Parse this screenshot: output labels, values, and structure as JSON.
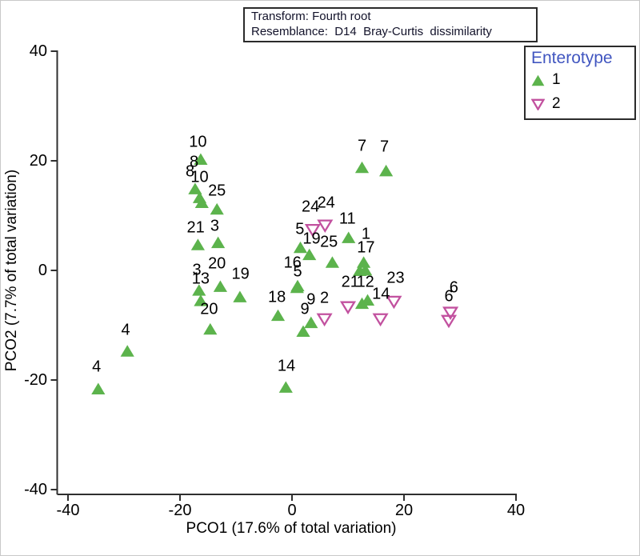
{
  "annotation_box": {
    "line1": "Transform: Fourth root",
    "line2": "Resemblance:  D14  Bray-Curtis  dissimilarity"
  },
  "legend": {
    "title": "Enterotype",
    "items": [
      {
        "label": "1",
        "marker": "filled-up-triangle",
        "color": "#5cb34c"
      },
      {
        "label": "2",
        "marker": "open-down-triangle",
        "color": "#c2519f"
      }
    ]
  },
  "colors": {
    "enterotype1_green": "#5cb34c",
    "enterotype2_pink": "#c2519f",
    "legend_title_blue": "#4156c0",
    "axis": "#2f2f2f",
    "text": "#000000"
  },
  "chart_data": {
    "type": "scatter",
    "title": "",
    "xlabel": "PCO1 (17.6% of total variation)",
    "ylabel": "PCO2 (7.7% of total variation)",
    "xlim": [
      -40,
      40
    ],
    "ylim": [
      -40,
      40
    ],
    "xticks": [
      -40,
      -20,
      0,
      20,
      40
    ],
    "yticks": [
      -40,
      -20,
      0,
      20,
      40
    ],
    "grid": false,
    "legend_position": "top-right",
    "series": [
      {
        "name": "1",
        "marker": "filled-up-triangle",
        "color": "#5cb34c",
        "points": [
          {
            "label": "10",
            "x": -16.3,
            "y": 20.3,
            "lx": -16.8,
            "ly": 23.4
          },
          {
            "label": "8",
            "x": -17.3,
            "y": 14.9,
            "lx": -17.5,
            "ly": 19.7
          },
          {
            "label": "8",
            "x": -16.5,
            "y": 13.3,
            "lx": -18.2,
            "ly": 18.0
          },
          {
            "label": "10",
            "x": -16.1,
            "y": 12.4,
            "lx": -16.5,
            "ly": 16.9
          },
          {
            "label": "25",
            "x": -13.4,
            "y": 11.2,
            "lx": -13.4,
            "ly": 14.5
          },
          {
            "label": "21",
            "x": -16.8,
            "y": 4.7,
            "lx": -17.2,
            "ly": 7.7
          },
          {
            "label": "3",
            "x": -13.2,
            "y": 5.1,
            "lx": -13.8,
            "ly": 8.0
          },
          {
            "label": "20",
            "x": -12.8,
            "y": -2.9,
            "lx": -13.4,
            "ly": 1.2
          },
          {
            "label": "3",
            "x": -16.6,
            "y": -3.6,
            "lx": -17.0,
            "ly": 0.0
          },
          {
            "label": "13",
            "x": -16.3,
            "y": -5.5,
            "lx": -16.3,
            "ly": -1.6
          },
          {
            "label": "19",
            "x": -9.3,
            "y": -4.8,
            "lx": -9.2,
            "ly": -0.7
          },
          {
            "label": "20",
            "x": -14.6,
            "y": -10.7,
            "lx": -14.8,
            "ly": -7.2
          },
          {
            "label": "4",
            "x": -29.4,
            "y": -14.7,
            "lx": -29.7,
            "ly": -10.9
          },
          {
            "label": "4",
            "x": -34.6,
            "y": -21.6,
            "lx": -34.9,
            "ly": -17.7
          },
          {
            "label": "14",
            "x": -1.1,
            "y": -21.3,
            "lx": -1.0,
            "ly": -17.5
          },
          {
            "label": "7",
            "x": 12.5,
            "y": 18.8,
            "lx": 12.5,
            "ly": 22.6
          },
          {
            "label": "7",
            "x": 16.8,
            "y": 18.2,
            "lx": 16.5,
            "ly": 22.5
          },
          {
            "label": "11",
            "x": 10.1,
            "y": 6.0,
            "lx": 9.9,
            "ly": 9.3
          },
          {
            "label": "5",
            "x": 1.5,
            "y": 4.2,
            "lx": 1.4,
            "ly": 7.4
          },
          {
            "label": "19",
            "x": 3.1,
            "y": 2.9,
            "lx": 3.5,
            "ly": 5.7
          },
          {
            "label": "25",
            "x": 7.2,
            "y": 1.5,
            "lx": 6.6,
            "ly": 5.1
          },
          {
            "label": "1",
            "x": 12.8,
            "y": 1.5,
            "lx": 13.2,
            "ly": 6.6
          },
          {
            "label": "17",
            "x": 12.1,
            "y": 0.0,
            "lx": 13.2,
            "ly": 4.1
          },
          {
            "label": "",
            "x": 13.1,
            "y": 0.1,
            "lx": 13.1,
            "ly": 0.1
          },
          {
            "label": "16",
            "x": 1.0,
            "y": -2.8,
            "lx": 0.1,
            "ly": 1.3
          },
          {
            "label": "5",
            "x": 0.9,
            "y": -3.1,
            "lx": 1.0,
            "ly": -0.3
          },
          {
            "label": "18",
            "x": -2.5,
            "y": -8.2,
            "lx": -2.7,
            "ly": -5.0
          },
          {
            "label": "9",
            "x": 3.4,
            "y": -9.5,
            "lx": 3.4,
            "ly": -5.4
          },
          {
            "label": "9",
            "x": 2.0,
            "y": -11.1,
            "lx": 2.3,
            "ly": -7.2
          },
          {
            "label": "21",
            "x": 12.5,
            "y": -6.0,
            "lx": 10.4,
            "ly": -2.2
          },
          {
            "label": "12",
            "x": 13.5,
            "y": -5.4,
            "lx": 13.1,
            "ly": -2.2
          }
        ]
      },
      {
        "name": "2",
        "marker": "open-down-triangle",
        "color": "#c2519f",
        "points": [
          {
            "label": "24",
            "x": 5.9,
            "y": 8.2,
            "lx": 6.1,
            "ly": 12.3
          },
          {
            "label": "24",
            "x": 3.7,
            "y": 7.4,
            "lx": 3.3,
            "ly": 11.5
          },
          {
            "label": "2",
            "x": 5.8,
            "y": -8.9,
            "lx": 5.8,
            "ly": -5.1
          },
          {
            "label": "",
            "x": 10.0,
            "y": -6.7,
            "lx": 10.0,
            "ly": -6.7
          },
          {
            "label": "14",
            "x": 15.8,
            "y": -8.9,
            "lx": 15.9,
            "ly": -4.4
          },
          {
            "label": "23",
            "x": 18.2,
            "y": -5.7,
            "lx": 18.5,
            "ly": -1.5
          },
          {
            "label": "6",
            "x": 28.3,
            "y": -7.7,
            "lx": 28.9,
            "ly": -3.2
          },
          {
            "label": "6",
            "x": 28.0,
            "y": -9.2,
            "lx": 28.0,
            "ly": -4.8
          }
        ]
      }
    ]
  }
}
